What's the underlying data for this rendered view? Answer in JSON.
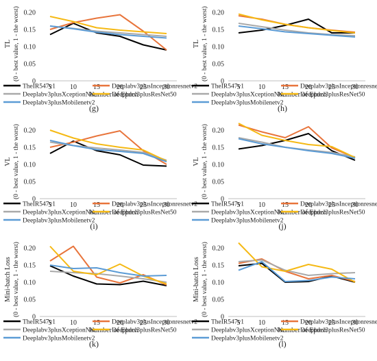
{
  "colors": {
    "TheIR547v1": "#000000",
    "Deeplabv3plusInceptionresnetv2": "#e8743b",
    "Deeplabv3plusXceptionNet": "#a9a9a9",
    "Deeplabv3plusResNet50": "#f5b914",
    "Deeplabv3plusMobilenetv2": "#5b9bd5"
  },
  "chart_data": [
    {
      "panel": "(g)",
      "type": "line",
      "ylabel": "TL",
      "ylabel2": "(0 - best value, 1 - the worst)",
      "xlabel": "Number of Epoch",
      "x": [
        5,
        10,
        15,
        20,
        25,
        30
      ],
      "ylim": [
        0,
        0.2
      ],
      "yticks": [
        "0",
        "0.05",
        "0.10",
        "0.15",
        "0.20"
      ],
      "series": [
        {
          "name": "TheIR547v1",
          "values": [
            0.135,
            0.168,
            0.14,
            0.13,
            0.105,
            0.09
          ]
        },
        {
          "name": "Deeplabv3plusInceptionresnetv2",
          "values": [
            0.15,
            0.17,
            0.183,
            0.193,
            0.145,
            0.09
          ]
        },
        {
          "name": "Deeplabv3plusXceptionNet",
          "values": [
            0.16,
            0.153,
            0.145,
            0.14,
            0.135,
            0.13
          ]
        },
        {
          "name": "Deeplabv3plusResNet50",
          "values": [
            0.188,
            0.173,
            0.155,
            0.148,
            0.143,
            0.138
          ]
        },
        {
          "name": "Deeplabv3plusMobilenetv2",
          "values": [
            0.16,
            0.152,
            0.142,
            0.135,
            0.13,
            0.125
          ]
        }
      ]
    },
    {
      "panel": "(h)",
      "type": "line",
      "ylabel": "TL",
      "ylabel2": "(0 - best value, 1 - the worst)",
      "xlabel": "Number of Epoch",
      "x": [
        5,
        10,
        15,
        20,
        25,
        30
      ],
      "ylim": [
        0,
        0.2
      ],
      "yticks": [
        "0",
        "0.05",
        "0.10",
        "0.15",
        "0.20"
      ],
      "series": [
        {
          "name": "TheIR547v1",
          "values": [
            0.14,
            0.148,
            0.162,
            0.18,
            0.14,
            0.14
          ]
        },
        {
          "name": "Deeplabv3plusInceptionresnetv2",
          "values": [
            0.19,
            0.18,
            0.165,
            0.155,
            0.148,
            0.142
          ]
        },
        {
          "name": "Deeplabv3plusXceptionNet",
          "values": [
            0.168,
            0.158,
            0.148,
            0.14,
            0.135,
            0.132
          ]
        },
        {
          "name": "Deeplabv3plusResNet50",
          "values": [
            0.195,
            0.178,
            0.165,
            0.155,
            0.147,
            0.14
          ]
        },
        {
          "name": "Deeplabv3plusMobilenetv2",
          "values": [
            0.16,
            0.152,
            0.143,
            0.138,
            0.133,
            0.128
          ]
        }
      ]
    },
    {
      "panel": "(i)",
      "type": "line",
      "ylabel": "VL",
      "ylabel2": "(0 - best value, 1 - the worst)",
      "xlabel": "Number of Epoch",
      "x": [
        5,
        10,
        15,
        20,
        25,
        30
      ],
      "ylim": [
        0,
        0.2
      ],
      "yticks": [
        "0",
        "0.05",
        "0.10",
        "0.15",
        "0.20"
      ],
      "series": [
        {
          "name": "TheIR547v1",
          "values": [
            0.132,
            0.168,
            0.14,
            0.128,
            0.098,
            0.095
          ]
        },
        {
          "name": "Deeplabv3plusInceptionresnetv2",
          "values": [
            0.15,
            0.165,
            0.183,
            0.198,
            0.14,
            0.1
          ]
        },
        {
          "name": "Deeplabv3plusXceptionNet",
          "values": [
            0.165,
            0.155,
            0.148,
            0.142,
            0.135,
            0.112
          ]
        },
        {
          "name": "Deeplabv3plusResNet50",
          "values": [
            0.2,
            0.177,
            0.16,
            0.15,
            0.142,
            0.11
          ]
        },
        {
          "name": "Deeplabv3plusMobilenetv2",
          "values": [
            0.17,
            0.155,
            0.143,
            0.138,
            0.132,
            0.108
          ]
        }
      ]
    },
    {
      "panel": "(j)",
      "type": "line",
      "ylabel": "VL",
      "ylabel2": "(0 - best value, 1 - the worst)",
      "xlabel": "Number of Epoch",
      "x": [
        5,
        10,
        15,
        20,
        25,
        30
      ],
      "ylim": [
        0,
        0.2
      ],
      "yticks": [
        "0",
        "0.05",
        "0.10",
        "0.15",
        "0.20"
      ],
      "series": [
        {
          "name": "TheIR547v1",
          "values": [
            0.145,
            0.155,
            0.17,
            0.19,
            0.14,
            0.112
          ]
        },
        {
          "name": "Deeplabv3plusInceptionresnetv2",
          "values": [
            0.215,
            0.195,
            0.178,
            0.21,
            0.148,
            0.12
          ]
        },
        {
          "name": "Deeplabv3plusXceptionNet",
          "values": [
            0.178,
            0.165,
            0.15,
            0.142,
            0.135,
            0.122
          ]
        },
        {
          "name": "Deeplabv3plusResNet50",
          "values": [
            0.22,
            0.185,
            0.17,
            0.158,
            0.152,
            0.12
          ]
        },
        {
          "name": "Deeplabv3plusMobilenetv2",
          "values": [
            0.175,
            0.16,
            0.15,
            0.14,
            0.132,
            0.118
          ]
        }
      ]
    },
    {
      "panel": "(k)",
      "type": "line",
      "ylabel": "Mini-batch Loss",
      "ylabel2": "(0 - best value, 1 - the worst)",
      "xlabel": "Number of Epoch",
      "x": [
        5,
        10,
        15,
        20,
        25,
        30
      ],
      "ylim": [
        0,
        0.2
      ],
      "yticks": [
        "0",
        "0.05",
        "0.10",
        "0.15",
        "0.20"
      ],
      "series": [
        {
          "name": "TheIR547v1",
          "values": [
            0.148,
            0.118,
            0.095,
            0.093,
            0.103,
            0.09
          ]
        },
        {
          "name": "Deeplabv3plusInceptionresnetv2",
          "values": [
            0.162,
            0.205,
            0.115,
            0.098,
            0.122,
            0.092
          ]
        },
        {
          "name": "Deeplabv3plusXceptionNet",
          "values": [
            0.132,
            0.128,
            0.125,
            0.118,
            0.11,
            0.1
          ]
        },
        {
          "name": "Deeplabv3plusResNet50",
          "values": [
            0.205,
            0.132,
            0.122,
            0.153,
            0.118,
            0.095
          ]
        },
        {
          "name": "Deeplabv3plusMobilenetv2",
          "values": [
            0.15,
            0.14,
            0.142,
            0.128,
            0.118,
            0.12
          ]
        }
      ]
    },
    {
      "panel": "(l)",
      "type": "line",
      "ylabel": "Mini-batch Loss",
      "ylabel2": "(0 - best value, 1 - the worst)",
      "xlabel": "Number of Epoch",
      "x": [
        5,
        10,
        15,
        20,
        25,
        30
      ],
      "ylim": [
        0,
        0.2
      ],
      "yticks": [
        "0",
        "0.05",
        "0.10",
        "0.15",
        "0.20"
      ],
      "series": [
        {
          "name": "TheIR547v1",
          "values": [
            0.148,
            0.155,
            0.1,
            0.102,
            0.118,
            0.1
          ]
        },
        {
          "name": "Deeplabv3plusInceptionresnetv2",
          "values": [
            0.155,
            0.168,
            0.132,
            0.11,
            0.12,
            0.102
          ]
        },
        {
          "name": "Deeplabv3plusXceptionNet",
          "values": [
            0.16,
            0.165,
            0.135,
            0.12,
            0.125,
            0.128
          ]
        },
        {
          "name": "Deeplabv3plusResNet50",
          "values": [
            0.215,
            0.145,
            0.132,
            0.152,
            0.138,
            0.1
          ]
        },
        {
          "name": "Deeplabv3plusMobilenetv2",
          "values": [
            0.135,
            0.16,
            0.102,
            0.105,
            0.115,
            0.11
          ]
        }
      ]
    }
  ]
}
